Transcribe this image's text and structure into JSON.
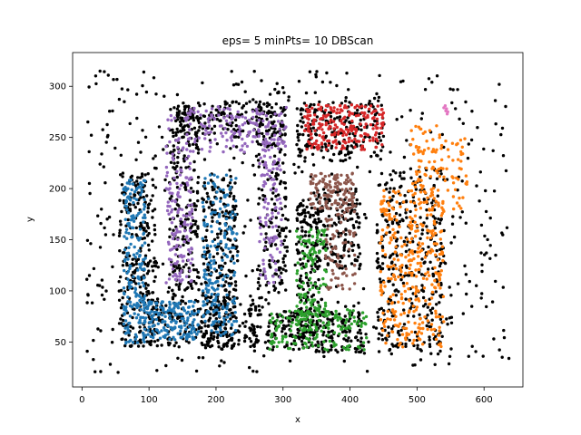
{
  "chart_data": {
    "type": "scatter",
    "title": "eps= 5 minPts= 10 DBScan",
    "xlabel": "x",
    "ylabel": "y",
    "xlim": [
      -14,
      658
    ],
    "ylim": [
      6,
      333
    ],
    "xticks": [
      0,
      100,
      200,
      300,
      400,
      500,
      600
    ],
    "yticks": [
      50,
      100,
      150,
      200,
      250,
      300
    ],
    "grid": false,
    "legend": "none",
    "series": [
      {
        "color": "#000000",
        "shapes": [
          {
            "kind": "rect",
            "x": [
              55,
              110
            ],
            "y": [
              45,
              215
            ],
            "n": 260
          },
          {
            "kind": "rect",
            "x": [
              100,
              270
            ],
            "y": [
              45,
              95
            ],
            "n": 240
          },
          {
            "kind": "rect",
            "x": [
              180,
              230
            ],
            "y": [
              45,
              215
            ],
            "n": 230
          },
          {
            "kind": "rect",
            "x": [
              130,
              175
            ],
            "y": [
              100,
              280
            ],
            "n": 200
          },
          {
            "kind": "rect",
            "x": [
              140,
              305
            ],
            "y": [
              250,
              285
            ],
            "n": 180
          },
          {
            "kind": "rect",
            "x": [
              260,
              305
            ],
            "y": [
              100,
              280
            ],
            "n": 160
          },
          {
            "kind": "rect",
            "x": [
              275,
              420
            ],
            "y": [
              40,
              80
            ],
            "n": 230
          },
          {
            "kind": "rect",
            "x": [
              320,
              355
            ],
            "y": [
              60,
              190
            ],
            "n": 150
          },
          {
            "kind": "rect",
            "x": [
              345,
              415
            ],
            "y": [
              120,
              200
            ],
            "n": 160
          },
          {
            "kind": "rect",
            "x": [
              320,
              450
            ],
            "y": [
              230,
              285
            ],
            "n": 180
          },
          {
            "kind": "rect",
            "x": [
              440,
              540
            ],
            "y": [
              40,
              220
            ],
            "n": 320
          },
          {
            "kind": "rect",
            "x": [
              5,
              640
            ],
            "y": [
              20,
              315
            ],
            "n": 560
          }
        ]
      },
      {
        "color": "#1f77b4",
        "shapes": [
          {
            "kind": "rect",
            "x": [
              62,
              95
            ],
            "y": [
              48,
              210
            ],
            "n": 200
          },
          {
            "kind": "rect",
            "x": [
              90,
              175
            ],
            "y": [
              52,
              90
            ],
            "n": 170
          },
          {
            "kind": "rect",
            "x": [
              180,
              232
            ],
            "y": [
              55,
              215
            ],
            "n": 200
          }
        ]
      },
      {
        "color": "#9467bd",
        "shapes": [
          {
            "kind": "rect",
            "x": [
              125,
              165
            ],
            "y": [
              105,
              275
            ],
            "n": 160
          },
          {
            "kind": "rect",
            "x": [
              160,
              305
            ],
            "y": [
              235,
              280
            ],
            "n": 150
          },
          {
            "kind": "rect",
            "x": [
              265,
              298
            ],
            "y": [
              105,
              250
            ],
            "n": 110
          }
        ]
      },
      {
        "color": "#d62728",
        "shapes": [
          {
            "kind": "rect",
            "x": [
              332,
              450
            ],
            "y": [
              238,
              282
            ],
            "n": 230
          }
        ]
      },
      {
        "color": "#8c564b",
        "shapes": [
          {
            "kind": "rect",
            "x": [
              340,
              405
            ],
            "y": [
              180,
              215
            ],
            "n": 90
          },
          {
            "kind": "rect",
            "x": [
              363,
              408
            ],
            "y": [
              100,
              215
            ],
            "n": 110
          }
        ]
      },
      {
        "color": "#2ca02c",
        "shapes": [
          {
            "kind": "rect",
            "x": [
              320,
              365
            ],
            "y": [
              60,
              160
            ],
            "n": 140
          },
          {
            "kind": "rect",
            "x": [
              280,
              425
            ],
            "y": [
              42,
              82
            ],
            "n": 150
          }
        ]
      },
      {
        "color": "#ff7f0e",
        "shapes": [
          {
            "kind": "rect",
            "x": [
              445,
              540
            ],
            "y": [
              45,
              200
            ],
            "n": 330
          },
          {
            "kind": "rect",
            "x": [
              490,
              575
            ],
            "y": [
              180,
              262
            ],
            "n": 120
          }
        ]
      },
      {
        "color": "#e377c2",
        "points": [
          [
            540,
            279
          ],
          [
            543,
            276
          ],
          [
            545,
            273
          ],
          [
            542,
            281
          ],
          [
            546,
            275
          ],
          [
            544,
            278
          ]
        ]
      }
    ]
  }
}
